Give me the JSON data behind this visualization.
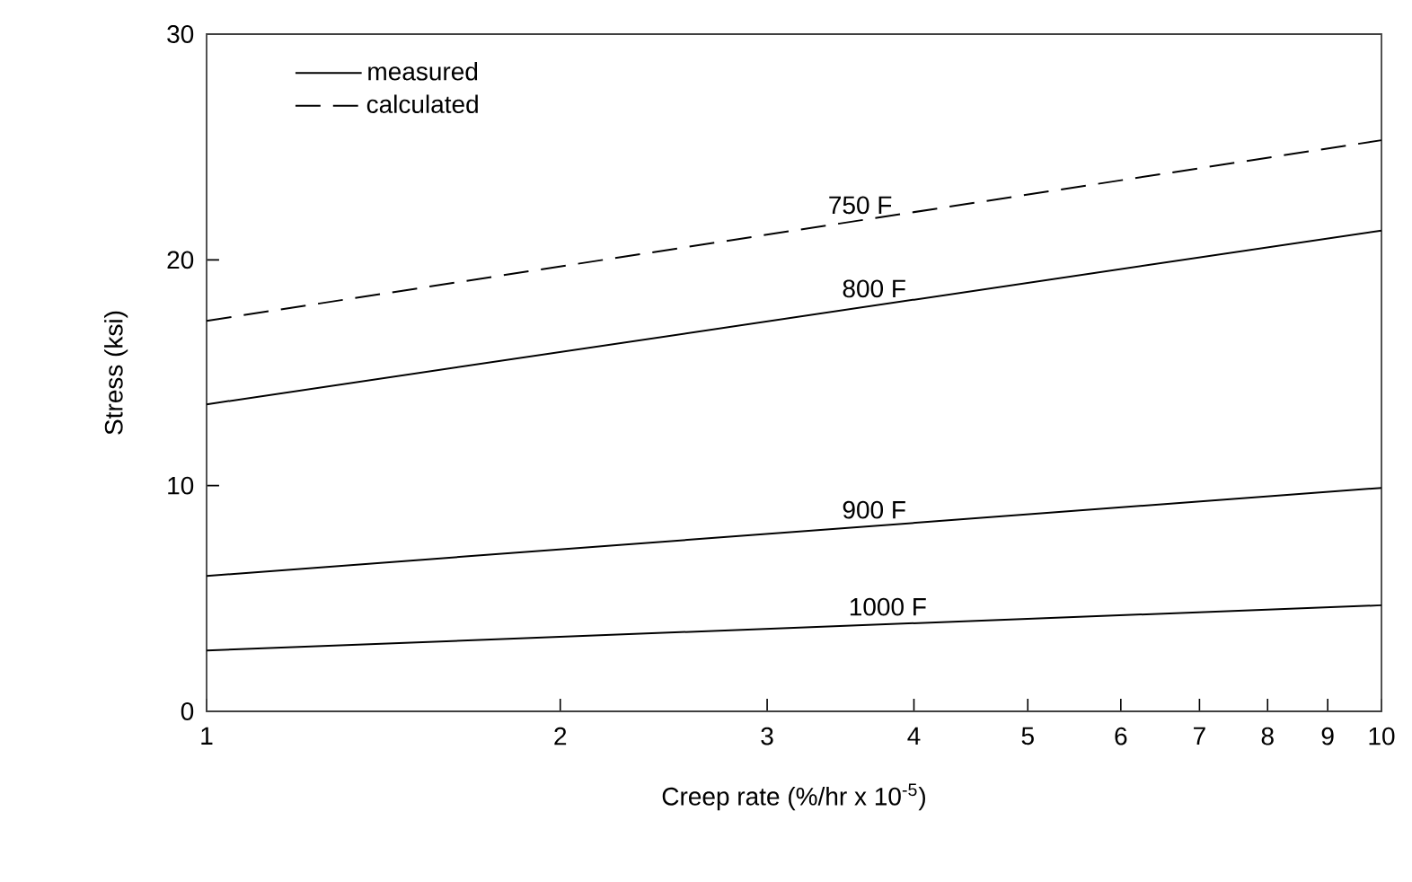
{
  "chart_data": {
    "type": "line",
    "xlabel": "Creep rate (%/hr x 10$^{-5}$)",
    "ylabel": "Stress (ksi)",
    "log": "x",
    "xlim": [
      1,
      10
    ],
    "xticks": [
      1,
      2,
      3,
      4,
      5,
      6,
      7,
      8,
      9,
      10
    ],
    "ylim": [
      0,
      30
    ],
    "yticks": [
      0,
      10,
      20,
      30
    ],
    "grid": false,
    "marker": "none",
    "legend": "top left",
    "x": [
      1,
      10
    ],
    "annotations": [
      {
        "text": "750 F",
        "x": 3.6,
        "y": 21.7
      },
      {
        "text": "800 F",
        "x": 3.7,
        "y": 18.0
      },
      {
        "text": "900 F",
        "x": 3.7,
        "y": 8.2
      },
      {
        "text": "1000 F",
        "x": 3.8,
        "y": 3.9
      }
    ],
    "series": [
      {
        "name": "measured",
        "color": "#000000",
        "line_style": "solid",
        "values": [
          13.6,
          21.3
        ]
      },
      {
        "name": "calculated",
        "color": "#000000",
        "line_style": "dashed",
        "values": [
          17.3,
          25.3
        ]
      },
      {
        "color": "#000000",
        "line_style": "solid",
        "values": [
          6.0,
          9.9
        ]
      },
      {
        "color": "#000000",
        "line_style": "solid",
        "values": [
          2.7,
          4.7
        ]
      }
    ]
  }
}
